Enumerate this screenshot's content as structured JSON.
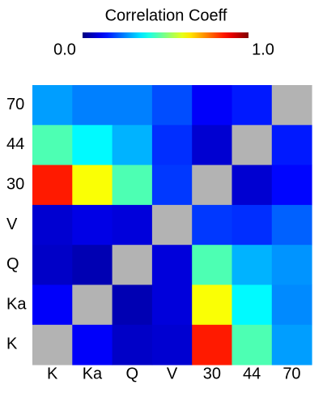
{
  "chart_data": {
    "type": "heatmap",
    "title": "Correlation Coeff",
    "colormap": "jet",
    "null_color": "#b3b3b3",
    "x_categories": [
      "K",
      "Ka",
      "Q",
      "V",
      "30",
      "44",
      "70"
    ],
    "y_categories": [
      "70",
      "44",
      "30",
      "V",
      "Q",
      "Ka",
      "K"
    ],
    "values": [
      [
        0.28,
        0.25,
        0.25,
        0.2,
        0.12,
        0.15,
        null
      ],
      [
        0.45,
        0.37,
        0.3,
        0.17,
        0.08,
        null,
        0.15
      ],
      [
        0.85,
        0.62,
        0.45,
        0.18,
        null,
        0.08,
        0.13
      ],
      [
        0.08,
        0.1,
        0.09,
        null,
        0.18,
        0.17,
        0.22
      ],
      [
        0.07,
        0.05,
        null,
        0.09,
        0.45,
        0.3,
        0.27
      ],
      [
        0.12,
        null,
        0.05,
        0.09,
        0.62,
        0.37,
        0.26
      ],
      [
        null,
        0.12,
        0.07,
        0.08,
        0.85,
        0.45,
        0.28
      ]
    ],
    "clim": [
      0,
      1
    ],
    "cticks": [
      {
        "value": 0,
        "label": "0.0"
      },
      {
        "value": 1,
        "label": "1.0"
      }
    ]
  }
}
